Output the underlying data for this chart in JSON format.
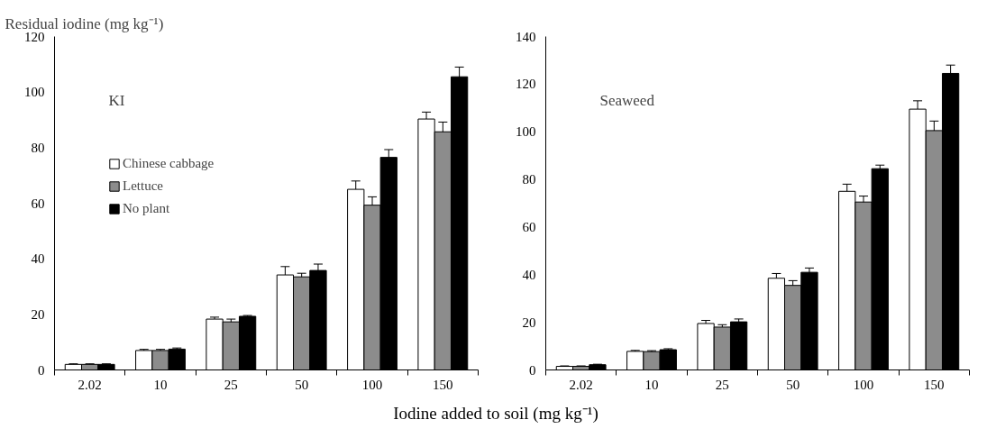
{
  "chart_data": [
    {
      "type": "bar",
      "ylabel": "Residual iodine (mg kg⁻¹)",
      "xlabel": "Iodine added to soil (mg kg⁻¹)",
      "annotations": [
        "KI"
      ],
      "categories": [
        "2.02",
        "10",
        "25",
        "50",
        "100",
        "150"
      ],
      "ylim": [
        0,
        120
      ],
      "yticks": [
        0,
        20,
        40,
        60,
        80,
        100,
        120
      ],
      "legend": "top left",
      "grid": false,
      "series": [
        {
          "name": "Chinese cabbage",
          "color": "#ffffff",
          "values": [
            2.0,
            7.0,
            18.3,
            34.2,
            65,
            90.3
          ],
          "errors": [
            0.2,
            0.4,
            0.7,
            3,
            3,
            2.5
          ]
        },
        {
          "name": "Lettuce",
          "color": "#8c8c8c",
          "values": [
            2.0,
            7.0,
            17.3,
            33.5,
            59.3,
            85.7
          ],
          "errors": [
            0.2,
            0.4,
            1.0,
            1.3,
            3,
            3.5
          ]
        },
        {
          "name": "No plant",
          "color": "#000000",
          "values": [
            2.0,
            7.5,
            19.3,
            35.8,
            76.5,
            105.5
          ],
          "errors": [
            0.2,
            0.4,
            0.3,
            2.3,
            2.8,
            3.5
          ]
        }
      ]
    },
    {
      "type": "bar",
      "annotations": [
        "Seaweed"
      ],
      "categories": [
        "2.02",
        "10",
        "25",
        "50",
        "100",
        "150"
      ],
      "ylim": [
        0,
        140
      ],
      "yticks": [
        0,
        20,
        40,
        60,
        80,
        100,
        120,
        140
      ],
      "grid": false,
      "series": [
        {
          "color": "#ffffff",
          "values": [
            1.5,
            7.8,
            19.5,
            38.5,
            75,
            109.5
          ],
          "errors": [
            0.2,
            0.4,
            1.3,
            2,
            3,
            3.5
          ]
        },
        {
          "color": "#8c8c8c",
          "values": [
            1.5,
            7.7,
            18,
            35.5,
            70.5,
            100.5
          ],
          "errors": [
            0.2,
            0.4,
            1.0,
            2,
            2.5,
            4
          ]
        },
        {
          "color": "#000000",
          "values": [
            2.2,
            8.5,
            20.2,
            41,
            84.5,
            124.5
          ],
          "errors": [
            0.2,
            0.4,
            1.2,
            1.8,
            1.5,
            3.5
          ]
        }
      ]
    }
  ]
}
